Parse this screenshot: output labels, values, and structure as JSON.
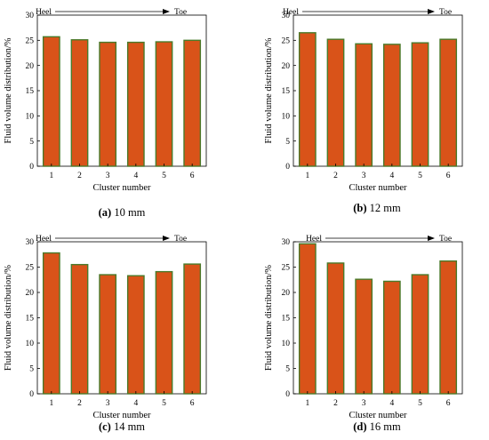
{
  "chart_data": [
    {
      "type": "bar",
      "panel_label": "(a)",
      "caption": "10 mm",
      "categories": [
        "1",
        "2",
        "3",
        "4",
        "5",
        "6"
      ],
      "values": [
        25.7,
        25.1,
        24.6,
        24.6,
        24.7,
        25.0
      ],
      "xlabel": "Cluster number",
      "ylabel": "Fluid volume distribution/%",
      "ylim": [
        0,
        30
      ],
      "yticks": [
        "0",
        "5",
        "10",
        "15",
        "20",
        "25",
        "30"
      ],
      "direction": {
        "start": "Heel",
        "end": "Toe"
      }
    },
    {
      "type": "bar",
      "panel_label": "(b)",
      "caption": "12 mm",
      "categories": [
        "1",
        "2",
        "3",
        "4",
        "5",
        "6"
      ],
      "values": [
        26.5,
        25.2,
        24.3,
        24.2,
        24.5,
        25.2
      ],
      "xlabel": "Cluster number",
      "ylabel": "Fluid volume distribution/%",
      "ylim": [
        0,
        30
      ],
      "yticks": [
        "0",
        "5",
        "10",
        "15",
        "20",
        "25",
        "30"
      ],
      "direction": {
        "start": "Heel",
        "end": "Toe"
      }
    },
    {
      "type": "bar",
      "panel_label": "(c)",
      "caption": "14 mm",
      "categories": [
        "1",
        "2",
        "3",
        "4",
        "5",
        "6"
      ],
      "values": [
        27.8,
        25.5,
        23.5,
        23.3,
        24.1,
        25.6
      ],
      "xlabel": "Cluster number",
      "ylabel": "Fluid volume distribution/%",
      "ylim": [
        0,
        30
      ],
      "yticks": [
        "0",
        "5",
        "10",
        "15",
        "20",
        "25",
        "30"
      ],
      "direction": {
        "start": "Heel",
        "end": "Toe"
      }
    },
    {
      "type": "bar",
      "panel_label": "(d)",
      "caption": "16 mm",
      "categories": [
        "1",
        "2",
        "3",
        "4",
        "5",
        "6"
      ],
      "values": [
        29.6,
        25.8,
        22.6,
        22.2,
        23.5,
        26.2
      ],
      "xlabel": "Cluster number",
      "ylabel": "Fluid volume distribution/%",
      "ylim": [
        0,
        30
      ],
      "yticks": [
        "0",
        "5",
        "10",
        "15",
        "20",
        "25",
        "30"
      ],
      "direction": {
        "start": "Heel",
        "end": "Toe"
      }
    }
  ],
  "colors": {
    "bar_fill": "#d95319",
    "bar_edge": "#4a7a2a",
    "axis": "#000000"
  }
}
